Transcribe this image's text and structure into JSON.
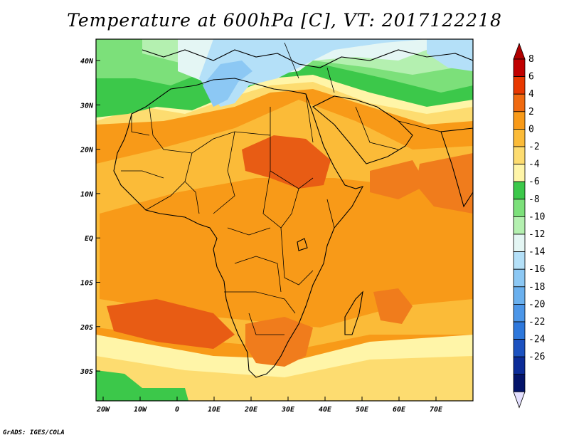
{
  "title": "Temperature at 600hPa [C], VT: 2017122218",
  "credit": "GrADS: IGES/COLA",
  "lat_labels": [
    "40N",
    "30N",
    "20N",
    "10N",
    "EQ",
    "10S",
    "20S",
    "30S"
  ],
  "lon_labels": [
    "20W",
    "10W",
    "0",
    "10E",
    "20E",
    "30E",
    "40E",
    "50E",
    "60E",
    "70E"
  ],
  "colorbar": {
    "labels": [
      "8",
      "6",
      "4",
      "2",
      "0",
      "-2",
      "-4",
      "-6",
      "-8",
      "-10",
      "-12",
      "-14",
      "-16",
      "-18",
      "-20",
      "-22",
      "-24",
      "-26"
    ],
    "colors": [
      "#c00000",
      "#e83800",
      "#f06a10",
      "#f89a18",
      "#fbbb38",
      "#fddc70",
      "#fff5a8",
      "#3cc84a",
      "#7ce07a",
      "#b4f0b0",
      "#e4f6f4",
      "#b4e0f8",
      "#8cc8f4",
      "#6ab0ee",
      "#4c96e8",
      "#2e78dc",
      "#1c52c0",
      "#0c2c98",
      "#04146a"
    ],
    "over_color": "#b00000",
    "under_color": "#e4e0ff"
  },
  "map_colors": {
    "warmest": "#e85c14",
    "warm": "#f07c1c",
    "mild": "#f89a18",
    "cool": "#fbbb38",
    "neutral": "#fddc70",
    "pale": "#fff5a8",
    "green": "#3cc84a",
    "light_green": "#7ce07a",
    "pale_green": "#b4f0b0",
    "pale_blue": "#e4f6f4",
    "light_blue": "#b4e0f8",
    "blue": "#8cc8f4"
  }
}
